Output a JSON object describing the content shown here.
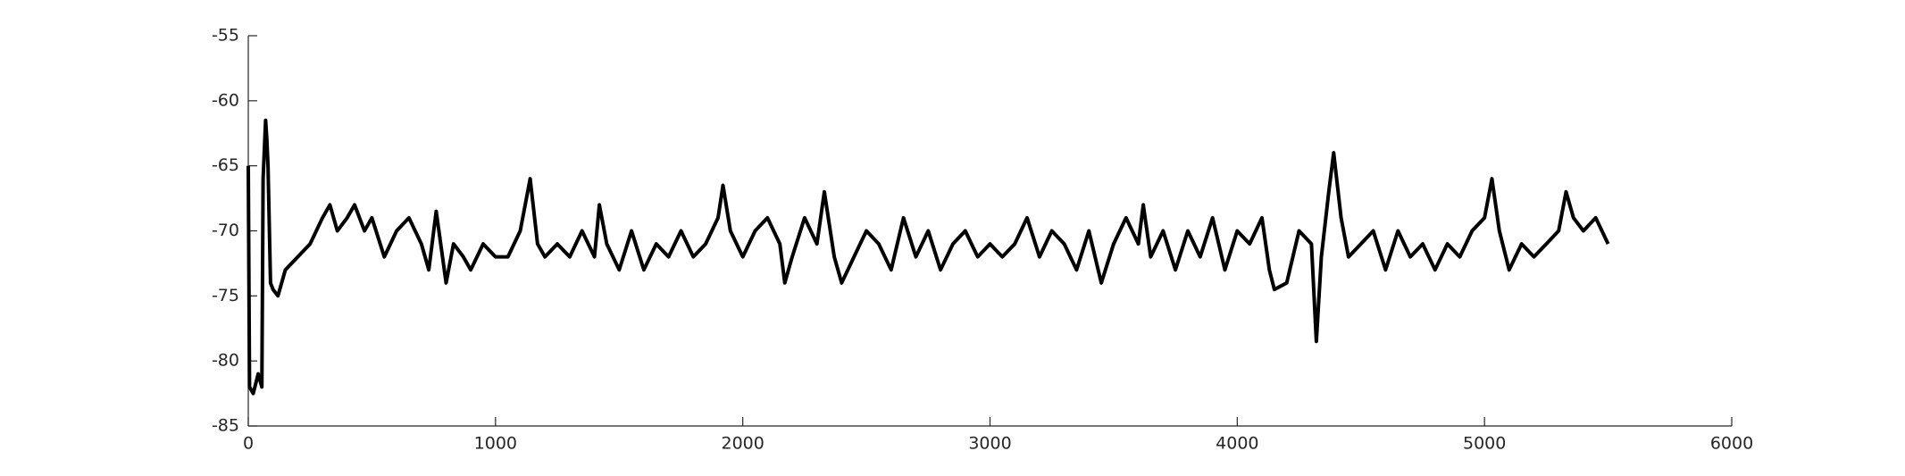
{
  "chart_data": {
    "type": "line",
    "x": [
      0,
      5,
      20,
      40,
      55,
      60,
      70,
      75,
      80,
      90,
      100,
      120,
      150,
      200,
      250,
      300,
      330,
      360,
      400,
      430,
      470,
      500,
      550,
      600,
      650,
      700,
      730,
      760,
      800,
      830,
      870,
      900,
      950,
      1000,
      1050,
      1100,
      1140,
      1170,
      1200,
      1250,
      1300,
      1350,
      1400,
      1420,
      1450,
      1500,
      1550,
      1600,
      1650,
      1700,
      1750,
      1800,
      1850,
      1900,
      1920,
      1950,
      2000,
      2050,
      2100,
      2150,
      2170,
      2200,
      2250,
      2300,
      2330,
      2370,
      2400,
      2450,
      2500,
      2550,
      2600,
      2650,
      2700,
      2750,
      2800,
      2850,
      2900,
      2950,
      3000,
      3050,
      3100,
      3150,
      3200,
      3250,
      3300,
      3350,
      3400,
      3450,
      3500,
      3550,
      3600,
      3620,
      3650,
      3700,
      3750,
      3800,
      3850,
      3900,
      3950,
      4000,
      4050,
      4100,
      4130,
      4150,
      4200,
      4250,
      4300,
      4320,
      4340,
      4370,
      4390,
      4420,
      4450,
      4500,
      4550,
      4600,
      4650,
      4700,
      4750,
      4800,
      4850,
      4900,
      4950,
      5000,
      5030,
      5060,
      5100,
      5150,
      5200,
      5250,
      5300,
      5330,
      5360,
      5400,
      5450,
      5500
    ],
    "series": [
      {
        "color": "#000000",
        "values": [
          -65,
          -82,
          -82.5,
          -81,
          -82,
          -66,
          -61.5,
          -63,
          -65,
          -74,
          -74.5,
          -75,
          -73,
          -72,
          -71,
          -69,
          -68,
          -70,
          -69,
          -68,
          -70,
          -69,
          -72,
          -70,
          -69,
          -71,
          -73,
          -68.5,
          -74,
          -71,
          -72,
          -73,
          -71,
          -72,
          -72,
          -70,
          -66,
          -71,
          -72,
          -71,
          -72,
          -70,
          -72,
          -68,
          -71,
          -73,
          -70,
          -73,
          -71,
          -72,
          -70,
          -72,
          -71,
          -69,
          -66.5,
          -70,
          -72,
          -70,
          -69,
          -71,
          -74,
          -72,
          -69,
          -71,
          -67,
          -72,
          -74,
          -72,
          -70,
          -71,
          -73,
          -69,
          -72,
          -70,
          -73,
          -71,
          -70,
          -72,
          -71,
          -72,
          -71,
          -69,
          -72,
          -70,
          -71,
          -73,
          -70,
          -74,
          -71,
          -69,
          -71,
          -68,
          -72,
          -70,
          -73,
          -70,
          -72,
          -69,
          -73,
          -70,
          -71,
          -69,
          -73,
          -74.5,
          -74,
          -70,
          -71,
          -78.5,
          -72,
          -67,
          -64,
          -69,
          -72,
          -71,
          -70,
          -73,
          -70,
          -72,
          -71,
          -73,
          -71,
          -72,
          -70,
          -69,
          -66,
          -70,
          -73,
          -71,
          -72,
          -71,
          -70,
          -67,
          -69,
          -70,
          -69,
          -71
        ]
      }
    ],
    "xlim": [
      0,
      6000
    ],
    "xticks": [
      0,
      1000,
      2000,
      3000,
      4000,
      5000,
      6000
    ],
    "ylim": [
      -85,
      -55
    ],
    "yticks": [
      -85,
      -80,
      -75,
      -70,
      -65,
      -60,
      -55
    ]
  }
}
